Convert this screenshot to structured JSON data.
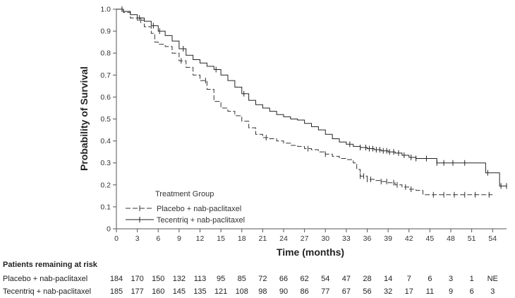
{
  "chart_data": {
    "type": "line",
    "xlabel": "Time (months)",
    "ylabel": "Probability of Survival",
    "xlim": [
      0,
      56
    ],
    "ylim": [
      0,
      1.0
    ],
    "x_ticks": [
      "0",
      "3",
      "6",
      "9",
      "12",
      "15",
      "18",
      "21",
      "24",
      "27",
      "30",
      "33",
      "36",
      "39",
      "42",
      "45",
      "48",
      "51",
      "54"
    ],
    "y_ticks": [
      "0",
      "0.1",
      "0.2",
      "0.3",
      "0.4",
      "0.5",
      "0.6",
      "0.7",
      "0.8",
      "0.9",
      "1.0"
    ],
    "legend_title": "Treatment Group",
    "series": [
      {
        "name": "Placebo + nab-paclitaxel",
        "style": "dashed",
        "color": "#333333",
        "x": [
          0,
          1,
          2,
          3,
          4,
          5,
          5.5,
          6,
          7,
          8,
          9,
          10,
          11,
          12,
          13,
          14,
          15,
          16,
          17,
          18,
          19,
          20,
          21,
          22,
          23,
          24,
          25,
          26,
          27,
          28,
          29,
          30,
          31,
          32,
          33,
          34,
          34.5,
          35,
          36,
          37,
          38,
          39,
          40,
          41,
          42,
          43,
          44,
          46,
          50,
          54
        ],
        "y": [
          1.0,
          0.985,
          0.96,
          0.95,
          0.92,
          0.89,
          0.85,
          0.84,
          0.83,
          0.8,
          0.765,
          0.735,
          0.7,
          0.675,
          0.635,
          0.58,
          0.55,
          0.535,
          0.515,
          0.49,
          0.46,
          0.43,
          0.415,
          0.41,
          0.4,
          0.39,
          0.38,
          0.375,
          0.365,
          0.36,
          0.35,
          0.34,
          0.33,
          0.32,
          0.315,
          0.3,
          0.27,
          0.24,
          0.225,
          0.22,
          0.215,
          0.21,
          0.2,
          0.19,
          0.18,
          0.175,
          0.155,
          0.155,
          0.155,
          0.155
        ],
        "censor_x": [
          3.5,
          9.3,
          12.8,
          21.5,
          27.5,
          30,
          35,
          35.5,
          36,
          36.5,
          38,
          38.8,
          39.8,
          40.3,
          41.5,
          42.3,
          45.5,
          47,
          48.5,
          50,
          51.5,
          53.5
        ]
      },
      {
        "name": "Tecentriq + nab-paclitaxel",
        "style": "solid",
        "color": "#222222",
        "x": [
          0,
          1,
          2,
          3,
          4,
          5,
          6,
          7,
          8,
          9,
          10,
          11,
          12,
          13,
          14,
          15,
          16,
          17,
          18,
          19,
          20,
          21,
          22,
          23,
          24,
          25,
          26,
          27,
          28,
          29,
          30,
          31,
          32,
          33,
          34,
          35,
          36,
          37,
          38,
          39,
          40,
          41,
          42,
          43,
          44,
          45,
          46,
          48,
          50,
          52,
          53,
          54,
          55,
          56
        ],
        "y": [
          1.0,
          0.99,
          0.975,
          0.96,
          0.945,
          0.925,
          0.9,
          0.88,
          0.855,
          0.82,
          0.79,
          0.77,
          0.755,
          0.74,
          0.725,
          0.7,
          0.675,
          0.645,
          0.615,
          0.585,
          0.565,
          0.55,
          0.535,
          0.52,
          0.51,
          0.5,
          0.495,
          0.48,
          0.465,
          0.45,
          0.43,
          0.41,
          0.395,
          0.385,
          0.375,
          0.37,
          0.365,
          0.36,
          0.355,
          0.35,
          0.345,
          0.335,
          0.325,
          0.32,
          0.32,
          0.32,
          0.3,
          0.3,
          0.3,
          0.3,
          0.255,
          0.255,
          0.195,
          0.195
        ],
        "censor_x": [
          0.8,
          3.3,
          5.3,
          6.2,
          9.6,
          14.3,
          18.3,
          33.5,
          35,
          35.8,
          36.3,
          36.8,
          37.3,
          37.8,
          38.3,
          38.8,
          39.2,
          39.8,
          40.5,
          41.3,
          42.3,
          43,
          44.5,
          46,
          47,
          48.3,
          50,
          53.3,
          55.2,
          56
        ]
      }
    ],
    "risk_table": {
      "title": "Patients remaining at risk",
      "rows": [
        {
          "label": "Placebo + nab-paclitaxel",
          "values": [
            "184",
            "170",
            "150",
            "132",
            "113",
            "95",
            "85",
            "72",
            "66",
            "62",
            "54",
            "47",
            "28",
            "14",
            "7",
            "6",
            "3",
            "1",
            "NE"
          ]
        },
        {
          "label": "Tecentriq + nab-paclitaxel",
          "values": [
            "185",
            "177",
            "160",
            "145",
            "135",
            "121",
            "108",
            "98",
            "90",
            "86",
            "77",
            "67",
            "56",
            "32",
            "17",
            "11",
            "9",
            "6",
            "3"
          ]
        }
      ]
    }
  }
}
